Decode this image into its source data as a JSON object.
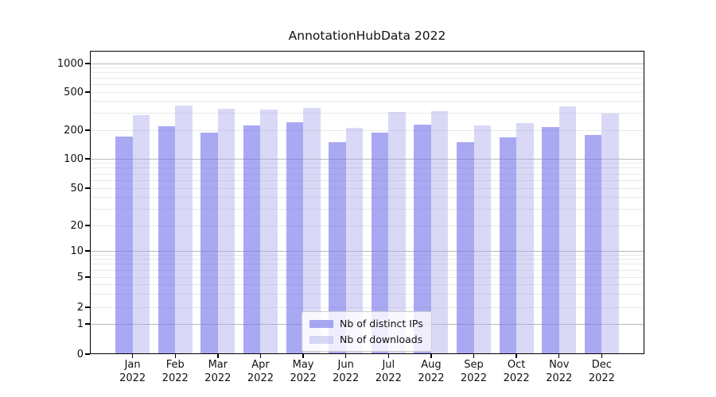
{
  "chart_data": {
    "type": "bar",
    "title": "AnnotationHubData 2022",
    "categories": [
      "Jan",
      "Feb",
      "Mar",
      "Apr",
      "May",
      "Jun",
      "Jul",
      "Aug",
      "Sep",
      "Oct",
      "Nov",
      "Dec"
    ],
    "year_label": "2022",
    "series": [
      {
        "name": "Nb of distinct IPs",
        "color": "rgba(116,116,236,0.62)",
        "values": [
          172,
          218,
          188,
          224,
          242,
          150,
          187,
          230,
          151,
          167,
          217,
          178
        ]
      },
      {
        "name": "Nb of downloads",
        "color": "rgba(171,171,237,0.45)",
        "values": [
          287,
          363,
          333,
          327,
          341,
          212,
          310,
          317,
          226,
          238,
          355,
          298
        ]
      }
    ],
    "y_ticks": [
      0,
      1,
      2,
      5,
      10,
      20,
      50,
      100,
      200,
      500,
      1000
    ],
    "y_scale": "symlog",
    "ylim": [
      0,
      1500
    ],
    "grid": "on",
    "legend_position": "lower-center",
    "colors": {
      "major_grid": "#b8b8b8",
      "minor_grid": "#e8e8e8",
      "axis": "#000000",
      "text": "#111111",
      "legend_border": "#cccccc"
    }
  }
}
